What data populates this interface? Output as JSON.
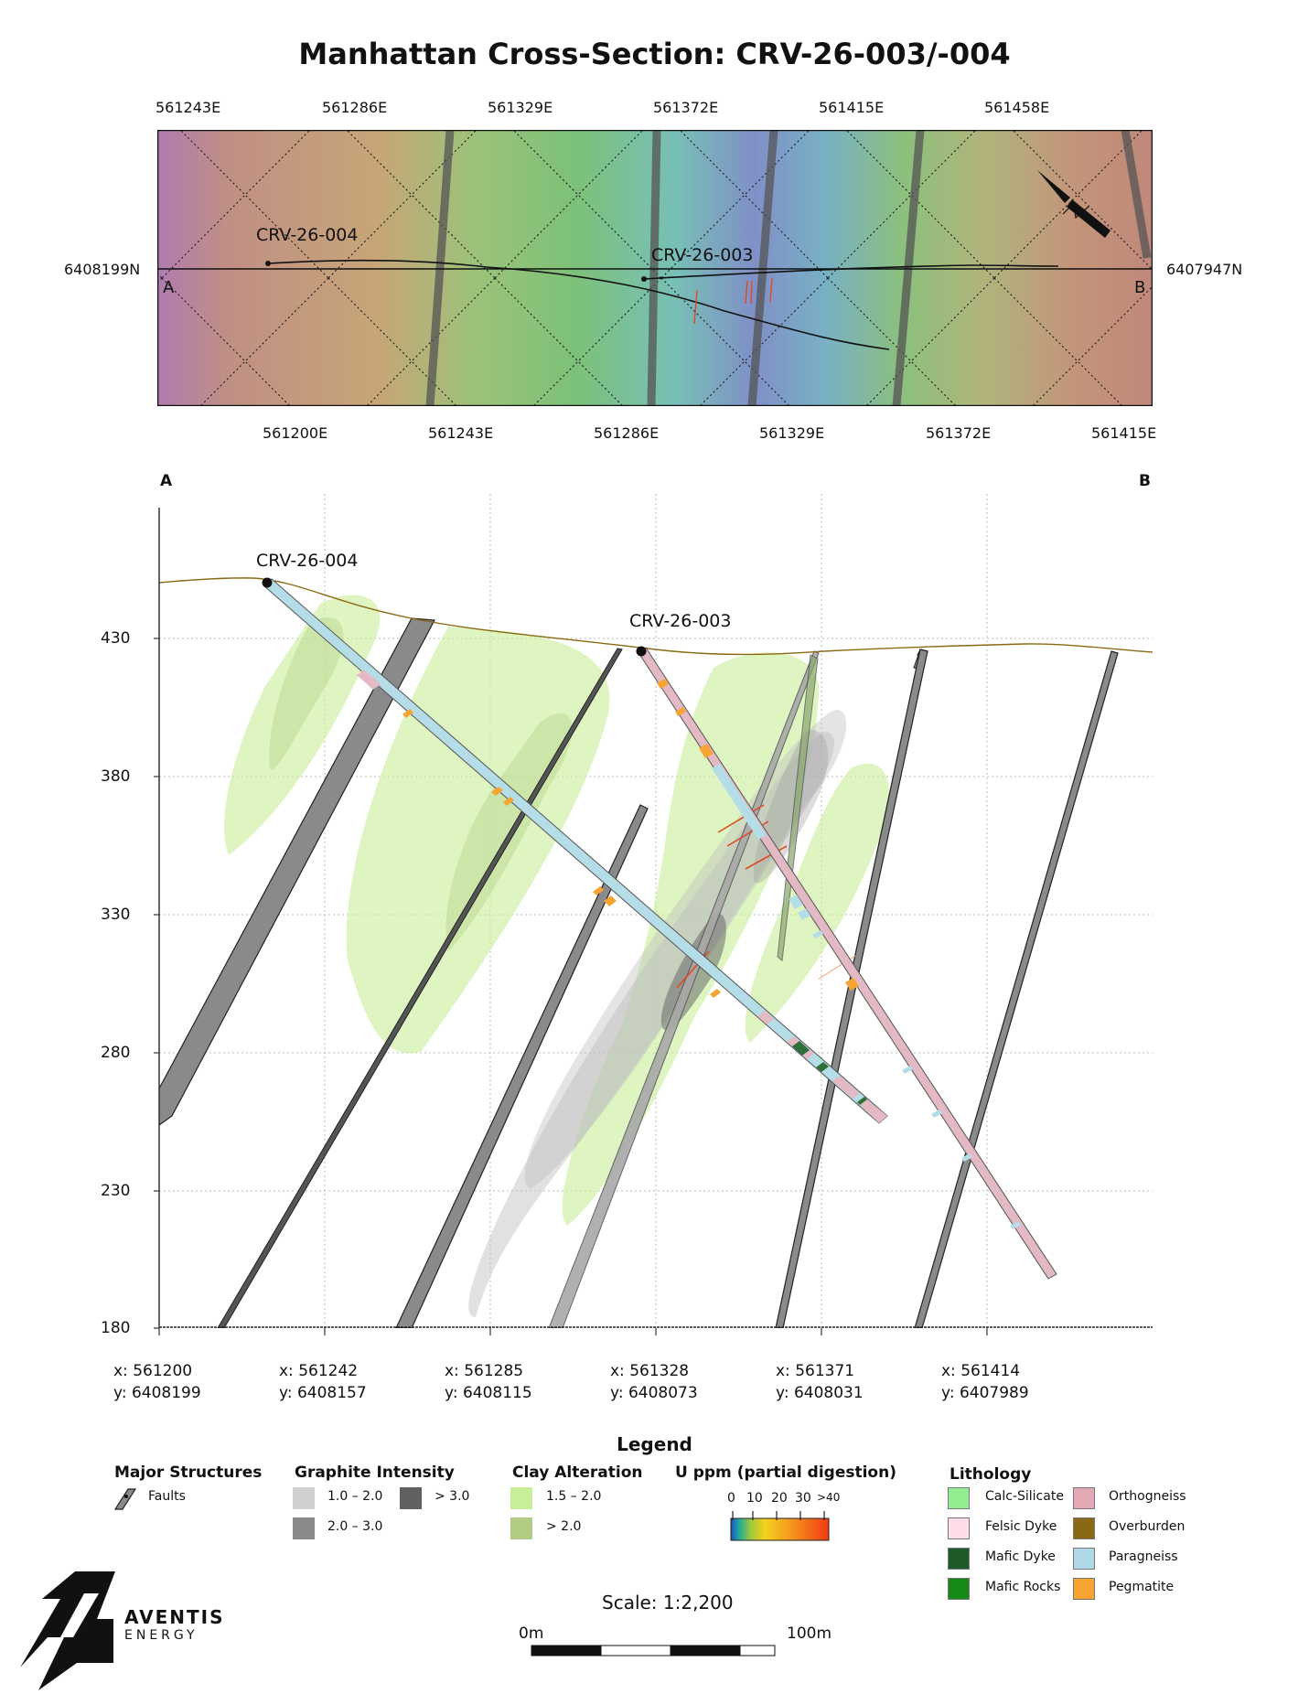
{
  "title": "Manhattan Cross-Section: CRV-26-003/-004",
  "plan_map": {
    "top_eastings": [
      "561243E",
      "561286E",
      "561329E",
      "561372E",
      "561415E",
      "561458E"
    ],
    "bottom_eastings": [
      "561200E",
      "561243E",
      "561286E",
      "561329E",
      "561372E",
      "561415E"
    ],
    "left_northing": "6408199N",
    "right_northing": "6407947N",
    "section_start": "A",
    "section_end": "B",
    "holes": [
      "CRV-26-004",
      "CRV-26-003"
    ]
  },
  "section": {
    "end_a": "A",
    "end_b": "B",
    "elevations": [
      "430",
      "380",
      "330",
      "280",
      "230",
      "180"
    ],
    "stations": [
      {
        "x": "x: 561200",
        "y": "y: 6408199"
      },
      {
        "x": "x: 561242",
        "y": "y: 6408157"
      },
      {
        "x": "x: 561285",
        "y": "y: 6408115"
      },
      {
        "x": "x: 561328",
        "y": "y: 6408073"
      },
      {
        "x": "x: 561371",
        "y": "y: 6408031"
      },
      {
        "x": "x: 561414",
        "y": "y: 6407989"
      }
    ],
    "holes": [
      "CRV-26-004",
      "CRV-26-003"
    ]
  },
  "legend": {
    "title": "Legend",
    "structures": {
      "heading": "Major Structures",
      "faults": "Faults"
    },
    "graphite": {
      "heading": "Graphite Intensity",
      "low": "1.0 – 2.0",
      "mid": "2.0 – 3.0",
      "high": "> 3.0"
    },
    "clay": {
      "heading": "Clay Alteration",
      "low": "1.5 – 2.0",
      "high": "> 2.0"
    },
    "uranium": {
      "heading": "U ppm (partial digestion)",
      "ticks": [
        "0",
        "10",
        "20",
        "30",
        ">40"
      ]
    },
    "lithology": {
      "heading": "Lithology",
      "items": [
        {
          "label": "Calc-Silicate",
          "color": "#90ee90"
        },
        {
          "label": "Orthogneiss",
          "color": "#e3a8b4"
        },
        {
          "label": "Felsic Dyke",
          "color": "#ffdde6"
        },
        {
          "label": "Overburden",
          "color": "#8b6914"
        },
        {
          "label": "Mafic Dyke",
          "color": "#1e5a2a"
        },
        {
          "label": "Paragneiss",
          "color": "#aed8e6"
        },
        {
          "label": "Mafic Rocks",
          "color": "#168a16"
        },
        {
          "label": "Pegmatite",
          "color": "#f7a532"
        }
      ]
    }
  },
  "scale": {
    "text": "Scale: 1:2,200",
    "start": "0m",
    "end": "100m"
  },
  "logo": {
    "name": "AVENTIS",
    "sub": "ENERGY"
  },
  "colors": {
    "clay": "#c8ee9a",
    "graphite": "#9a9a9a",
    "fault": "#888888",
    "orthogneiss_hole": "#e3b9c3",
    "paragneiss_hole": "#b5dde8",
    "pegmatite": "#f7a532",
    "mafic_dyke": "#2e6e38",
    "u_anomaly": "#e04a20"
  }
}
